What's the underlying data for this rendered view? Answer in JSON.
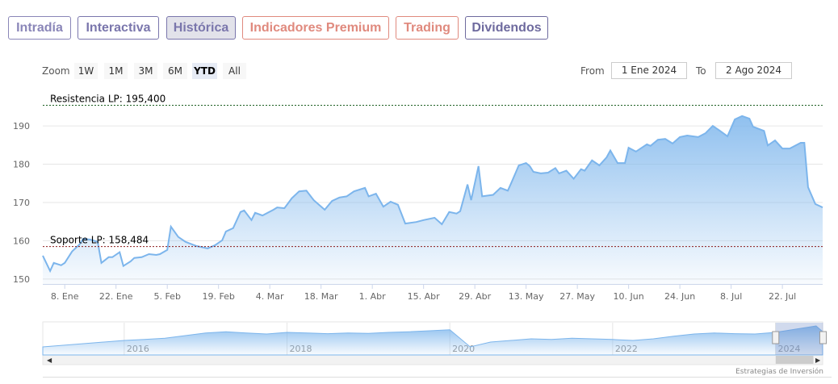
{
  "tabs": [
    "Intradía",
    "Interactiva",
    "Histórica",
    "Indicadores Premium",
    "Trading",
    "Dividendos"
  ],
  "zoom": {
    "label": "Zoom",
    "buttons": [
      "1W",
      "1M",
      "3M",
      "6M",
      "YTD",
      "All"
    ]
  },
  "range": {
    "from_label": "From",
    "from": "1 Ene 2024",
    "to_label": "To",
    "to": "2 Ago 2024"
  },
  "credit": "Estrategias de Inversión",
  "chart_data": {
    "type": "area",
    "color": "#7cb5ec",
    "x": [
      "2024-01-02",
      "2024-01-04",
      "2024-01-05",
      "2024-01-07",
      "2024-01-08",
      "2024-01-10",
      "2024-01-12",
      "2024-01-13",
      "2024-01-15",
      "2024-01-17",
      "2024-01-18",
      "2024-01-20",
      "2024-01-21",
      "2024-01-23",
      "2024-01-24",
      "2024-01-26",
      "2024-01-27",
      "2024-01-29",
      "2024-01-31",
      "2024-02-02",
      "2024-02-03",
      "2024-02-05",
      "2024-02-06",
      "2024-02-08",
      "2024-02-10",
      "2024-02-13",
      "2024-02-16",
      "2024-02-18",
      "2024-02-20",
      "2024-02-21",
      "2024-02-23",
      "2024-02-25",
      "2024-02-26",
      "2024-02-28",
      "2024-02-29",
      "2024-03-02",
      "2024-03-05",
      "2024-03-06",
      "2024-03-08",
      "2024-03-10",
      "2024-03-12",
      "2024-03-14",
      "2024-03-16",
      "2024-03-19",
      "2024-03-21",
      "2024-03-23",
      "2024-03-25",
      "2024-03-27",
      "2024-03-30",
      "2024-03-31",
      "2024-04-02",
      "2024-04-04",
      "2024-04-06",
      "2024-04-08",
      "2024-04-10",
      "2024-04-13",
      "2024-04-15",
      "2024-04-18",
      "2024-04-20",
      "2024-04-22",
      "2024-04-24",
      "2024-04-25",
      "2024-04-27",
      "2024-04-28",
      "2024-04-30",
      "2024-05-01",
      "2024-05-04",
      "2024-05-06",
      "2024-05-08",
      "2024-05-09",
      "2024-05-11",
      "2024-05-13",
      "2024-05-14",
      "2024-05-15",
      "2024-05-17",
      "2024-05-19",
      "2024-05-21",
      "2024-05-22",
      "2024-05-24",
      "2024-05-26",
      "2024-05-28",
      "2024-05-29",
      "2024-05-31",
      "2024-06-02",
      "2024-06-04",
      "2024-06-05",
      "2024-06-07",
      "2024-06-09",
      "2024-06-10",
      "2024-06-12",
      "2024-06-15",
      "2024-06-16",
      "2024-06-18",
      "2024-06-20",
      "2024-06-22",
      "2024-06-24",
      "2024-06-26",
      "2024-06-29",
      "2024-07-01",
      "2024-07-03",
      "2024-07-05",
      "2024-07-07",
      "2024-07-09",
      "2024-07-11",
      "2024-07-13",
      "2024-07-14",
      "2024-07-17",
      "2024-07-18",
      "2024-07-20",
      "2024-07-22",
      "2024-07-24",
      "2024-07-27",
      "2024-07-28",
      "2024-07-29",
      "2024-07-31",
      "2024-08-02"
    ],
    "values": [
      156.1,
      152.1,
      154.2,
      153.6,
      154.2,
      157.2,
      159,
      160.5,
      160.3,
      159.7,
      154.2,
      155.7,
      155.7,
      157,
      153.4,
      154.6,
      155.5,
      155.7,
      156.5,
      156.3,
      156.5,
      157.6,
      163.7,
      161,
      159.7,
      158.6,
      158,
      158.8,
      160.1,
      162.4,
      163.3,
      167.5,
      167.9,
      165.4,
      167.3,
      166.6,
      168.1,
      168.7,
      168.5,
      171.1,
      172.9,
      173.1,
      170.6,
      168.1,
      170.4,
      171.3,
      171.6,
      172.9,
      173.8,
      171.6,
      172.3,
      168.9,
      170.2,
      169.4,
      164.5,
      164.9,
      165.4,
      166,
      164.3,
      167.5,
      167.1,
      167.7,
      174.7,
      170.6,
      179.5,
      171.6,
      172,
      173.8,
      173.1,
      175.2,
      179.7,
      180.3,
      179.5,
      178,
      177.6,
      177.8,
      179,
      177.6,
      178.3,
      176.2,
      178.7,
      178.3,
      181,
      179.7,
      181.8,
      183.6,
      180.3,
      180.3,
      184.3,
      183.3,
      185.2,
      184.8,
      186.4,
      186.6,
      185.4,
      187.1,
      187.5,
      187.1,
      188.1,
      190,
      188.7,
      187.3,
      191.7,
      192.6,
      191.9,
      189.8,
      188.7,
      184.9,
      186.2,
      184.1,
      184.1,
      185.6,
      185.6,
      174,
      169.6,
      168.7
    ],
    "xlim": [
      "2024-01-02",
      "2024-08-02"
    ],
    "xticks": [
      {
        "value": "2024-01-08",
        "label": "8. Ene"
      },
      {
        "value": "2024-01-22",
        "label": "22. Ene"
      },
      {
        "value": "2024-02-05",
        "label": "5. Feb"
      },
      {
        "value": "2024-02-19",
        "label": "19. Feb"
      },
      {
        "value": "2024-03-04",
        "label": "4. Mar"
      },
      {
        "value": "2024-03-18",
        "label": "18. Mar"
      },
      {
        "value": "2024-04-01",
        "label": "1. Abr"
      },
      {
        "value": "2024-04-15",
        "label": "15. Abr"
      },
      {
        "value": "2024-04-29",
        "label": "29. Abr"
      },
      {
        "value": "2024-05-13",
        "label": "13. May"
      },
      {
        "value": "2024-05-27",
        "label": "27. May"
      },
      {
        "value": "2024-06-10",
        "label": "10. Jun"
      },
      {
        "value": "2024-06-24",
        "label": "24. Jun"
      },
      {
        "value": "2024-07-08",
        "label": "8. Jul"
      },
      {
        "value": "2024-07-22",
        "label": "22. Jul"
      }
    ],
    "ylim": [
      148.7,
      199.3
    ],
    "yticks": [
      150,
      160,
      170,
      180,
      190
    ],
    "grid": true,
    "plot_lines": [
      {
        "label": "Resistencia LP: 195,400",
        "value": 195.4
      },
      {
        "label": "Soporte LP: 158,484",
        "value": 158.484
      }
    ],
    "navigator": {
      "x": [
        2015,
        2015.25,
        2015.5,
        2015.75,
        2016,
        2016.25,
        2016.5,
        2016.75,
        2017,
        2017.25,
        2017.5,
        2017.75,
        2018,
        2018.25,
        2018.5,
        2018.75,
        2019,
        2019.25,
        2019.5,
        2019.75,
        2020,
        2020.25,
        2020.5,
        2020.75,
        2021,
        2021.25,
        2021.5,
        2021.75,
        2022,
        2022.25,
        2022.5,
        2022.75,
        2023,
        2023.25,
        2023.5,
        2023.75,
        2024,
        2024.25,
        2024.5,
        2024.58
      ],
      "values": [
        125,
        130,
        135,
        140,
        145,
        148,
        152,
        160,
        168,
        172,
        168,
        165,
        170,
        168,
        166,
        168,
        167,
        170,
        172,
        175,
        178,
        125,
        140,
        145,
        150,
        148,
        152,
        150,
        148,
        145,
        150,
        158,
        165,
        168,
        166,
        165,
        170,
        180,
        190,
        172
      ],
      "xlim": [
        2015,
        2024.58
      ],
      "ylim": [
        100,
        200
      ],
      "xticks": [
        2016,
        2018,
        2020,
        2022,
        2024
      ]
    }
  }
}
